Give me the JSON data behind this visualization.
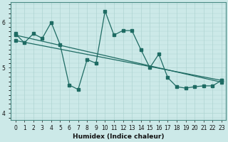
{
  "xlabel": "Humidex (Indice chaleur)",
  "bg_color": "#cce9e8",
  "line_color": "#1e6b63",
  "grid_color": "#aed4d2",
  "xlim": [
    -0.5,
    23.5
  ],
  "ylim": [
    3.85,
    6.45
  ],
  "xticks": [
    0,
    1,
    2,
    3,
    4,
    5,
    6,
    7,
    8,
    9,
    10,
    11,
    12,
    13,
    14,
    15,
    16,
    17,
    18,
    19,
    20,
    21,
    22,
    23
  ],
  "yticks": [
    4,
    5,
    6
  ],
  "line1_x": [
    0,
    1,
    2,
    3,
    4,
    5,
    6,
    7,
    8,
    9,
    10,
    11,
    12,
    13,
    14,
    15,
    16,
    17,
    18,
    19,
    20,
    21,
    22,
    23
  ],
  "line1_y": [
    5.75,
    5.55,
    5.75,
    5.65,
    6.0,
    5.5,
    4.62,
    4.52,
    5.18,
    5.1,
    6.25,
    5.72,
    5.82,
    5.82,
    5.4,
    5.0,
    5.3,
    4.78,
    4.58,
    4.55,
    4.58,
    4.6,
    4.6,
    4.72
  ],
  "trend1_x": [
    0,
    23
  ],
  "trend1_y": [
    5.72,
    4.68
  ],
  "trend2_x": [
    0,
    23
  ],
  "trend2_y": [
    5.6,
    4.72
  ],
  "marker_size": 3.5,
  "linewidth": 0.9,
  "tick_fontsize": 5.5,
  "xlabel_fontsize": 6.5
}
